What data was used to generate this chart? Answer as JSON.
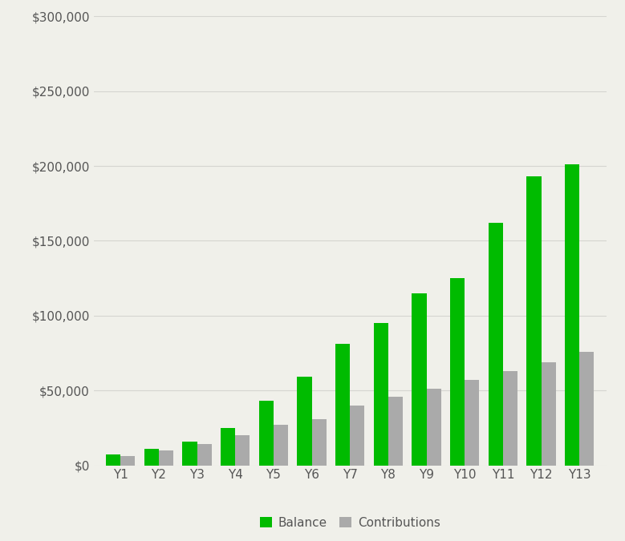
{
  "categories": [
    "Y1",
    "Y2",
    "Y3",
    "Y4",
    "Y5",
    "Y6",
    "Y7",
    "Y8",
    "Y9",
    "Y10",
    "Y11",
    "Y12",
    "Y13"
  ],
  "balance": [
    7000,
    11000,
    16000,
    25000,
    43000,
    59000,
    81000,
    95000,
    115000,
    125000,
    162000,
    193000,
    201000
  ],
  "contributions": [
    6000,
    10000,
    14000,
    20000,
    27000,
    31000,
    40000,
    46000,
    51000,
    57000,
    63000,
    69000,
    76000
  ],
  "balance_color": "#00BB00",
  "contributions_color": "#AAAAAA",
  "background_color": "#F0F0EA",
  "ylim": [
    0,
    300000
  ],
  "yticks": [
    0,
    50000,
    100000,
    150000,
    200000,
    250000,
    300000
  ],
  "bar_width": 0.38,
  "legend_labels": [
    "Balance",
    "Contributions"
  ],
  "grid_color": "#D5D5D0",
  "font_color": "#555555",
  "font_size": 11
}
